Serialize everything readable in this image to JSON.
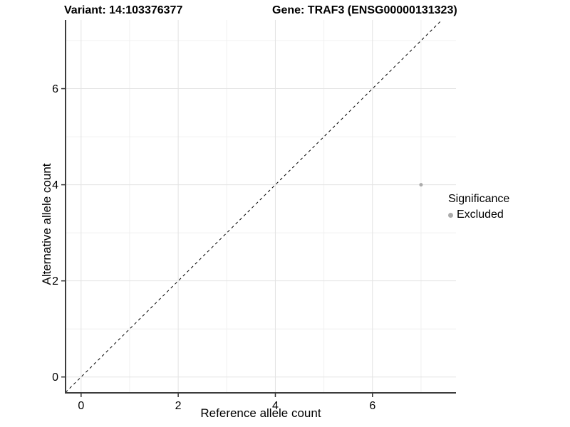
{
  "titles": {
    "variant": "Variant: 14:103376377",
    "gene": "Gene: TRAF3 (ENSG00000131323)"
  },
  "chart_data": {
    "type": "scatter",
    "title_left": "Variant: 14:103376377",
    "title_right": "Gene: TRAF3 (ENSG00000131323)",
    "xlabel": "Reference allele count",
    "ylabel": "Alternative allele count",
    "xlim": [
      -0.32,
      7.72
    ],
    "ylim": [
      -0.33,
      7.43
    ],
    "x_ticks": [
      0,
      2,
      4,
      6
    ],
    "y_ticks": [
      0,
      2,
      4,
      6
    ],
    "grid": {
      "major": [
        0,
        2,
        4,
        6
      ],
      "minor": [
        1,
        3,
        5,
        7
      ],
      "on": true
    },
    "series": [
      {
        "name": "Excluded",
        "points": [
          {
            "x": 7,
            "y": 4
          }
        ],
        "color": "#ABABAB"
      }
    ],
    "reference_line": {
      "kind": "identity",
      "slope": 1,
      "intercept": 0,
      "style": "dashed",
      "color": "#000000"
    },
    "legend": {
      "title": "Significance",
      "position": "right",
      "items": [
        {
          "label": "Excluded",
          "color": "#ABABAB"
        }
      ]
    },
    "colors": {
      "background": "#FFFFFF",
      "grid_major": "#E3E3E3",
      "grid_minor": "#F0F0F0",
      "axis_line": "#3C3C3C",
      "tick": "#333333",
      "point": "#ABABAB"
    }
  }
}
